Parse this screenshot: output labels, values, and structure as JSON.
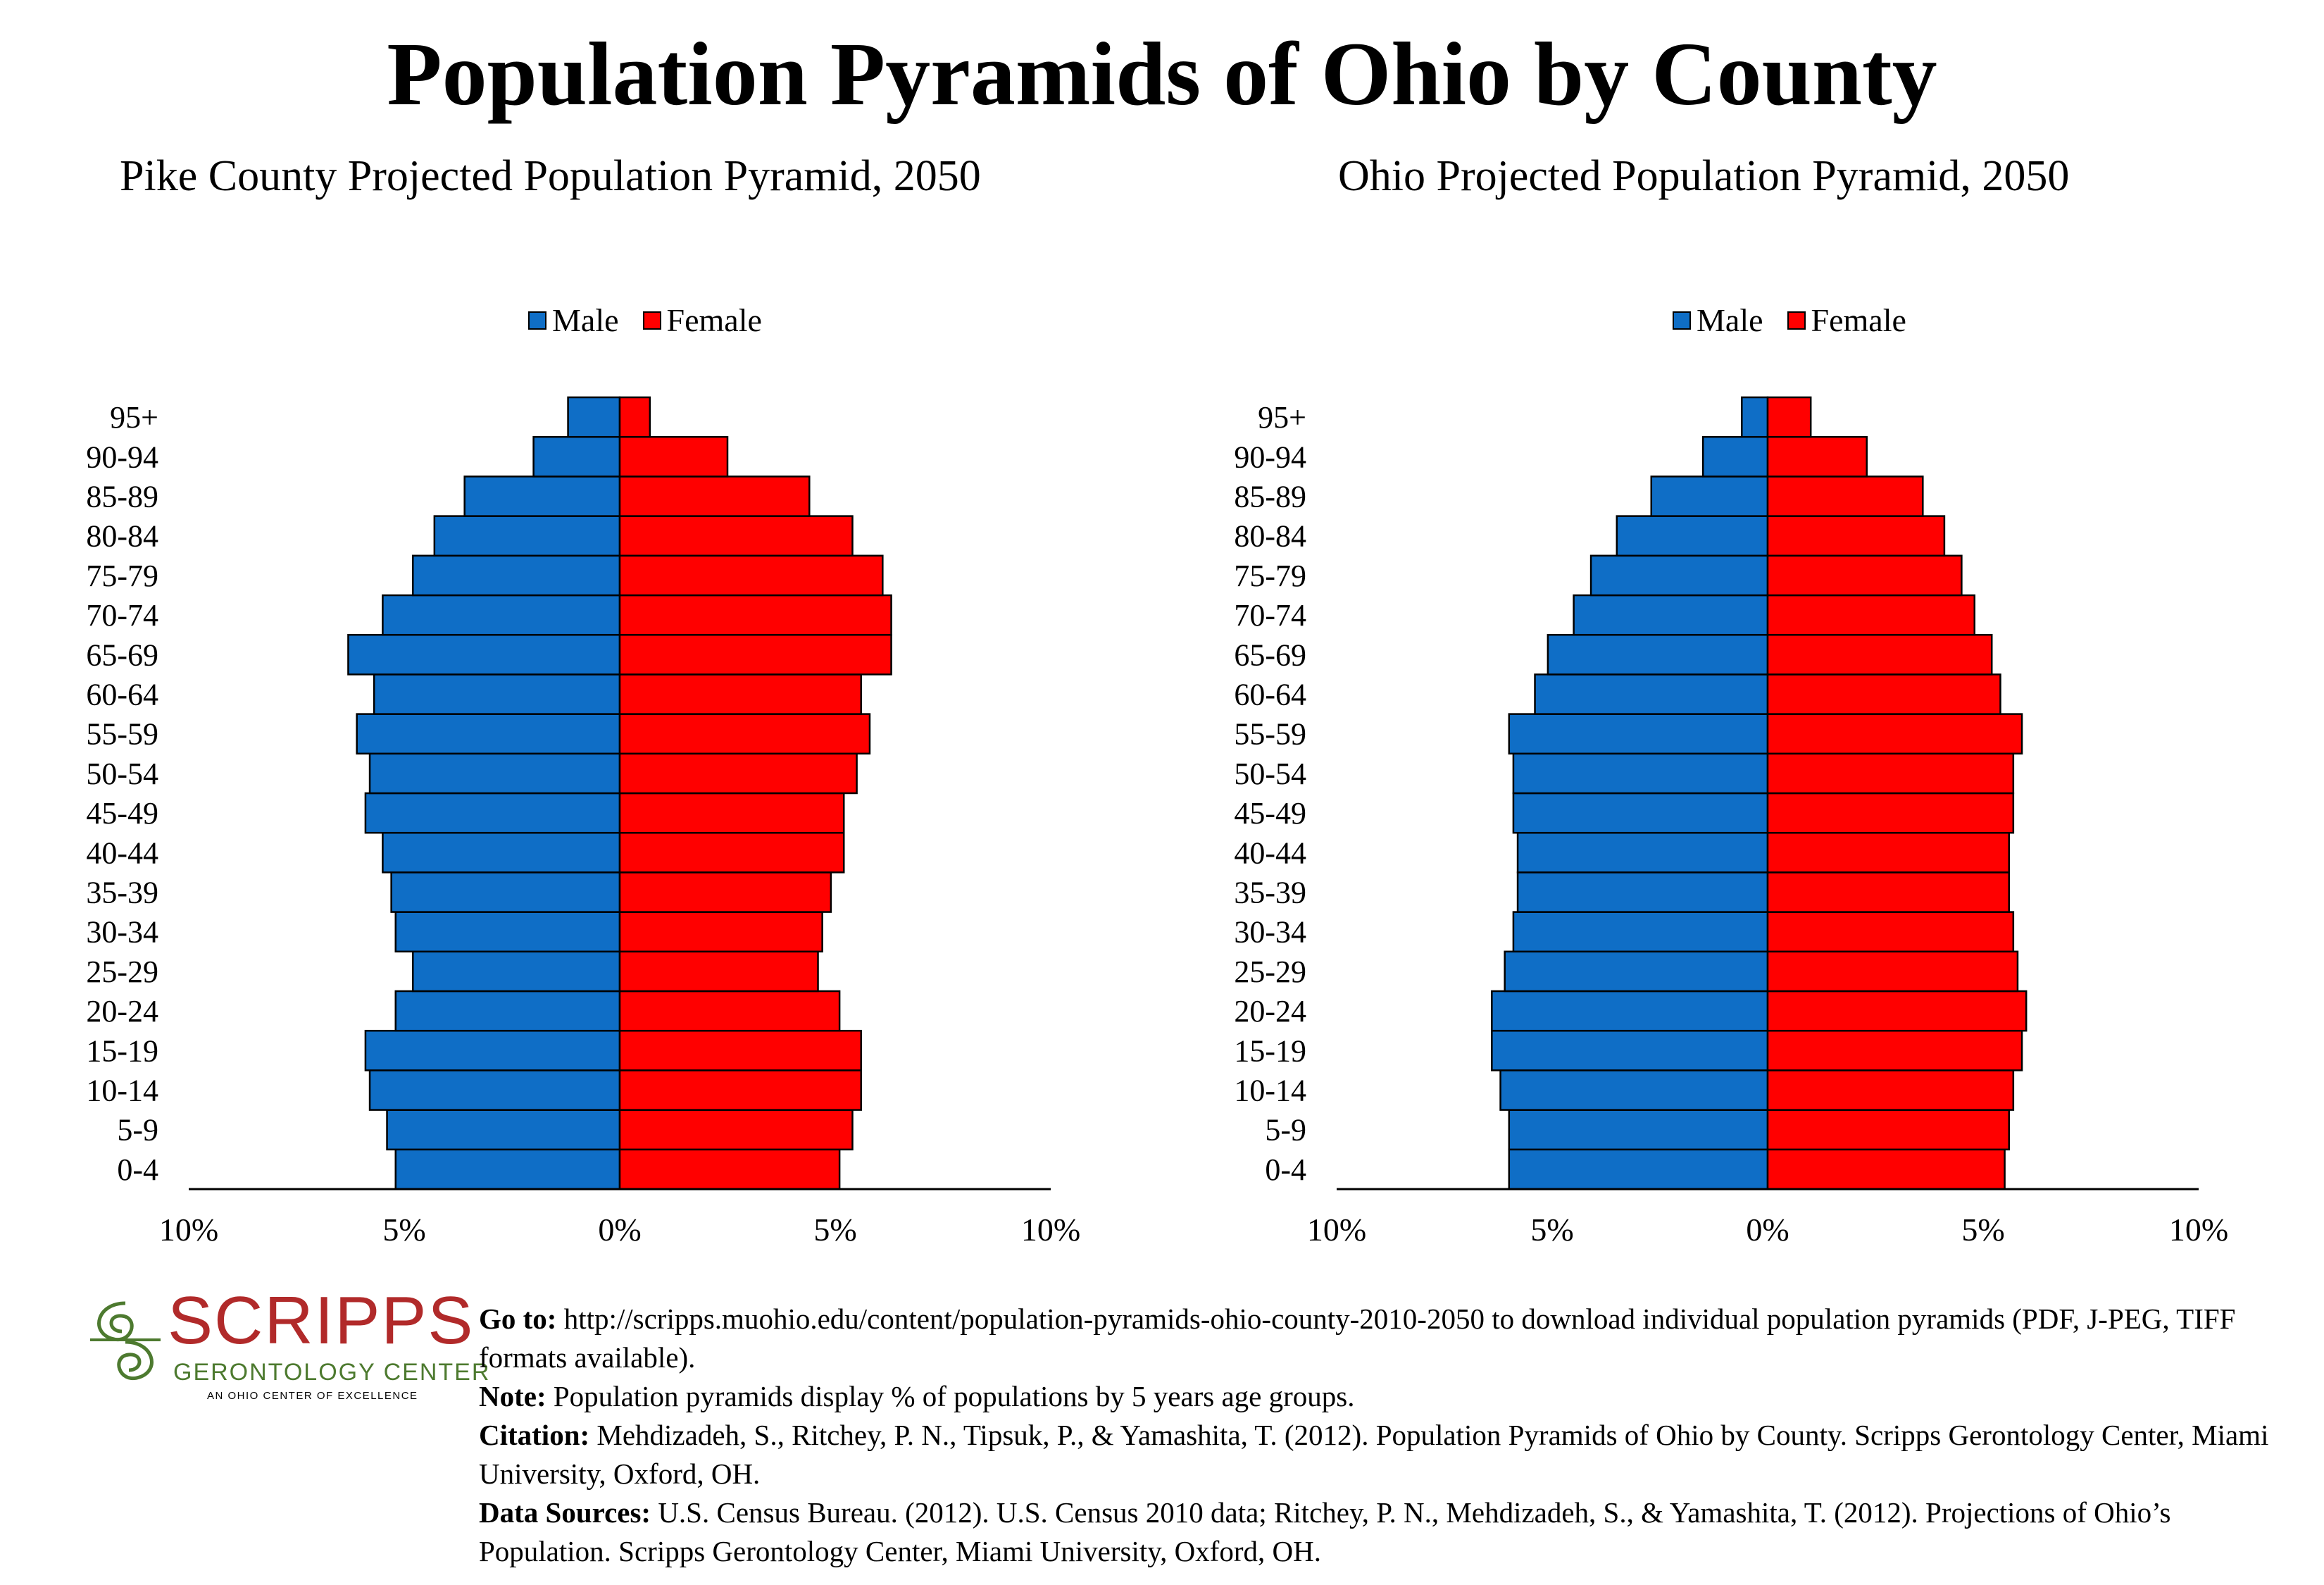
{
  "title": "Population Pyramids of Ohio by County",
  "chart_data": [
    {
      "type": "bar",
      "orientation": "horizontal-pyramid",
      "title": "Pike County Projected Population Pyramid, 2050",
      "categories": [
        "0-4",
        "5-9",
        "10-14",
        "15-19",
        "20-24",
        "25-29",
        "30-34",
        "35-39",
        "40-44",
        "45-49",
        "50-54",
        "55-59",
        "60-64",
        "65-69",
        "70-74",
        "75-79",
        "80-84",
        "85-89",
        "90-94",
        "95+"
      ],
      "series": [
        {
          "name": "Male",
          "color": "#0f6ec6",
          "values": [
            5.2,
            5.4,
            5.8,
            5.9,
            5.2,
            4.8,
            5.2,
            5.3,
            5.5,
            5.9,
            5.8,
            6.1,
            5.7,
            6.3,
            5.5,
            4.8,
            4.3,
            3.6,
            2.0,
            1.2
          ]
        },
        {
          "name": "Female",
          "color": "#ff0000",
          "values": [
            5.1,
            5.4,
            5.6,
            5.6,
            5.1,
            4.6,
            4.7,
            4.9,
            5.2,
            5.2,
            5.5,
            5.8,
            5.6,
            6.3,
            6.3,
            6.1,
            5.4,
            4.4,
            2.5,
            0.7
          ]
        }
      ],
      "xlim": [
        -10,
        10
      ],
      "xticks": [
        "10%",
        "5%",
        "0%",
        "5%",
        "10%"
      ],
      "legend": "top"
    },
    {
      "type": "bar",
      "orientation": "horizontal-pyramid",
      "title": "Ohio Projected Population Pyramid, 2050",
      "categories": [
        "0-4",
        "5-9",
        "10-14",
        "15-19",
        "20-24",
        "25-29",
        "30-34",
        "35-39",
        "40-44",
        "45-49",
        "50-54",
        "55-59",
        "60-64",
        "65-69",
        "70-74",
        "75-79",
        "80-84",
        "85-89",
        "90-94",
        "95+"
      ],
      "series": [
        {
          "name": "Male",
          "color": "#0f6ec6",
          "values": [
            6.0,
            6.0,
            6.2,
            6.4,
            6.4,
            6.1,
            5.9,
            5.8,
            5.8,
            5.9,
            5.9,
            6.0,
            5.4,
            5.1,
            4.5,
            4.1,
            3.5,
            2.7,
            1.5,
            0.6
          ]
        },
        {
          "name": "Female",
          "color": "#ff0000",
          "values": [
            5.5,
            5.6,
            5.7,
            5.9,
            6.0,
            5.8,
            5.7,
            5.6,
            5.6,
            5.7,
            5.7,
            5.9,
            5.4,
            5.2,
            4.8,
            4.5,
            4.1,
            3.6,
            2.3,
            1.0
          ]
        }
      ],
      "xlim": [
        -10,
        10
      ],
      "xticks": [
        "10%",
        "5%",
        "0%",
        "5%",
        "10%"
      ],
      "legend": "top"
    }
  ],
  "footer": {
    "goto_label": "Go to:",
    "goto_text": " http://scripps.muohio.edu/content/population-pyramids-ohio-county-2010-2050 to download individual population pyramids (PDF, J-PEG, TIFF formats available).",
    "note_label": "Note:",
    "note_text": " Population pyramids display % of populations by 5 years age groups.",
    "citation_label": "Citation:",
    "citation_text": " Mehdizadeh, S., Ritchey, P. N., Tipsuk, P., & Yamashita, T. (2012). Population Pyramids of Ohio by County. Scripps Gerontology Center, Miami University, Oxford, OH.",
    "sources_label": "Data Sources:",
    "sources_text": " U.S. Census Bureau. (2012). U.S. Census 2010 data; Ritchey, P. N., Mehdizadeh, S., & Yamashita, T. (2012). Projections of Ohio’s Population. Scripps Gerontology Center, Miami University, Oxford, OH."
  },
  "logo": {
    "wordmark": "SCRIPPS",
    "subtitle": "GERONTOLOGY CENTER",
    "tagline": "AN OHIO CENTER OF EXCELLENCE"
  }
}
